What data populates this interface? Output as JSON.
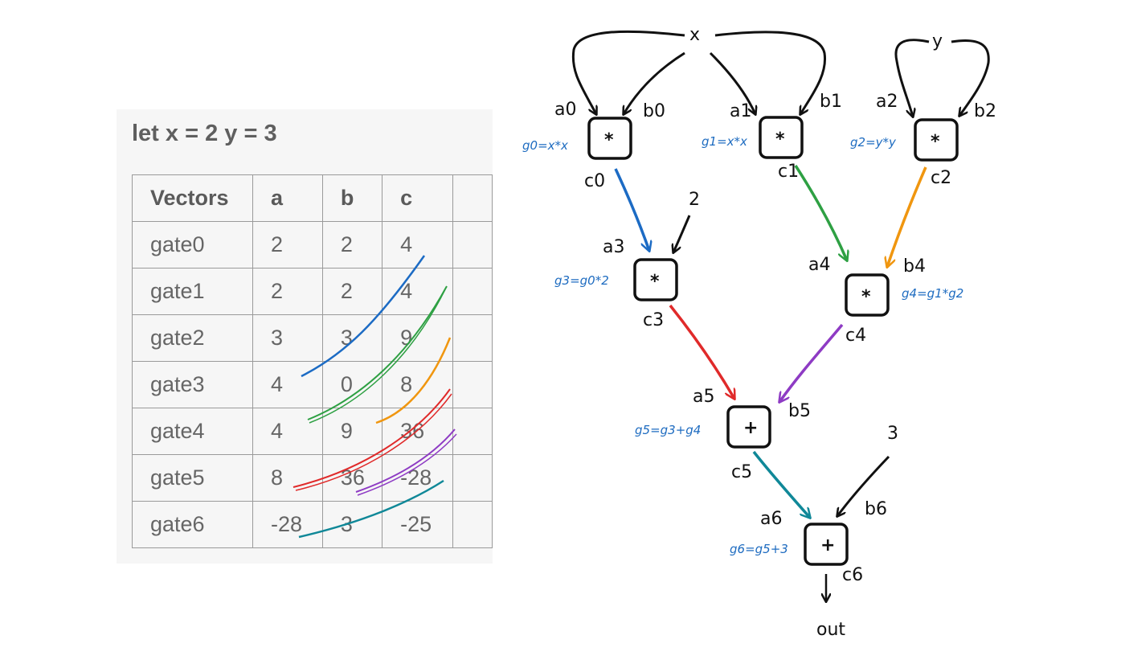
{
  "panel": {
    "title": "let x = 2 y = 3",
    "headers": [
      "Vectors",
      "a",
      "b",
      "c"
    ],
    "rows": [
      [
        "gate0",
        "2",
        "2",
        "4"
      ],
      [
        "gate1",
        "2",
        "2",
        "4"
      ],
      [
        "gate2",
        "3",
        "3",
        "9"
      ],
      [
        "gate3",
        "4",
        "0",
        "8"
      ],
      [
        "gate4",
        "4",
        "9",
        "36"
      ],
      [
        "gate5",
        "8",
        "36",
        "-28"
      ],
      [
        "gate6",
        "-28",
        "3",
        "-25"
      ]
    ]
  },
  "colors": {
    "blue": "#1c6bc4",
    "green": "#2ea043",
    "orange": "#f0960f",
    "red": "#e02a2a",
    "purple": "#8e3bc4",
    "teal": "#108898",
    "ink": "#111111",
    "annotation": "#1d6bc0"
  },
  "diagram": {
    "inputs": {
      "x": "x",
      "y": "y",
      "const2": "2",
      "const3": "3",
      "out": "out"
    },
    "gates": [
      {
        "id": "g0",
        "op": "*",
        "a": "a0",
        "b": "b0",
        "c": "c0",
        "eq": "g0=x*x"
      },
      {
        "id": "g1",
        "op": "*",
        "a": "a1",
        "b": "b1",
        "c": "c1",
        "eq": "g1=x*x"
      },
      {
        "id": "g2",
        "op": "*",
        "a": "a2",
        "b": "b2",
        "c": "c2",
        "eq": "g2=y*y"
      },
      {
        "id": "g3",
        "op": "*",
        "a": "a3",
        "b": "",
        "c": "c3",
        "eq": "g3=g0*2"
      },
      {
        "id": "g4",
        "op": "*",
        "a": "a4",
        "b": "b4",
        "c": "c4",
        "eq": "g4=g1*g2"
      },
      {
        "id": "g5",
        "op": "+",
        "a": "a5",
        "b": "b5",
        "c": "c5",
        "eq": "g5=g3+g4"
      },
      {
        "id": "g6",
        "op": "+",
        "a": "a6",
        "b": "b6",
        "c": "c6",
        "eq": "g6=g5+3"
      }
    ]
  }
}
